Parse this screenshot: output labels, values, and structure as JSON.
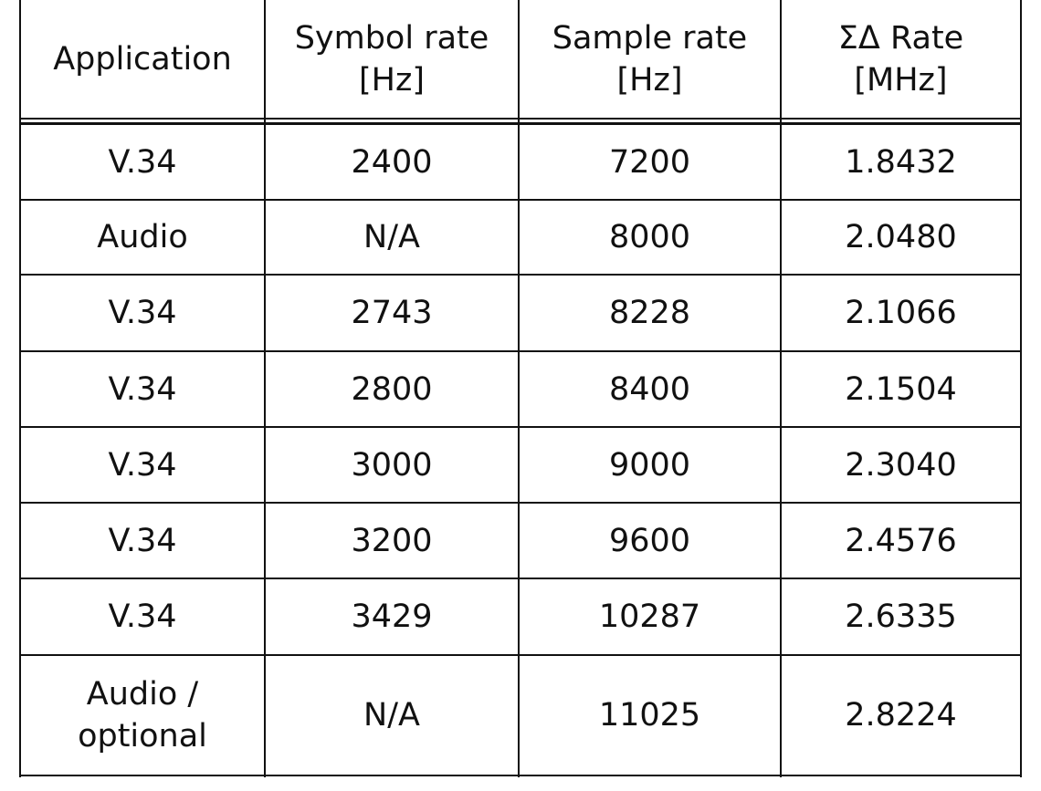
{
  "table": {
    "header": [
      "Application",
      "Symbol rate\n[Hz]",
      "Sample rate\n[Hz]",
      "ΣΔ Rate\n[MHz]"
    ],
    "rows": [
      [
        "V.34",
        "2400",
        "7200",
        "1.8432"
      ],
      [
        "Audio",
        "N/A",
        "8000",
        "2.0480"
      ],
      [
        "V.34",
        "2743",
        "8228",
        "2.1066"
      ],
      [
        "V.34",
        "2800",
        "8400",
        "2.1504"
      ],
      [
        "V.34",
        "3000",
        "9000",
        "2.3040"
      ],
      [
        "V.34",
        "3200",
        "9600",
        "2.4576"
      ],
      [
        "V.34",
        "3429",
        "10287",
        "2.6335"
      ],
      [
        "Audio /\noptional",
        "N/A",
        "11025",
        "2.8224"
      ]
    ]
  }
}
